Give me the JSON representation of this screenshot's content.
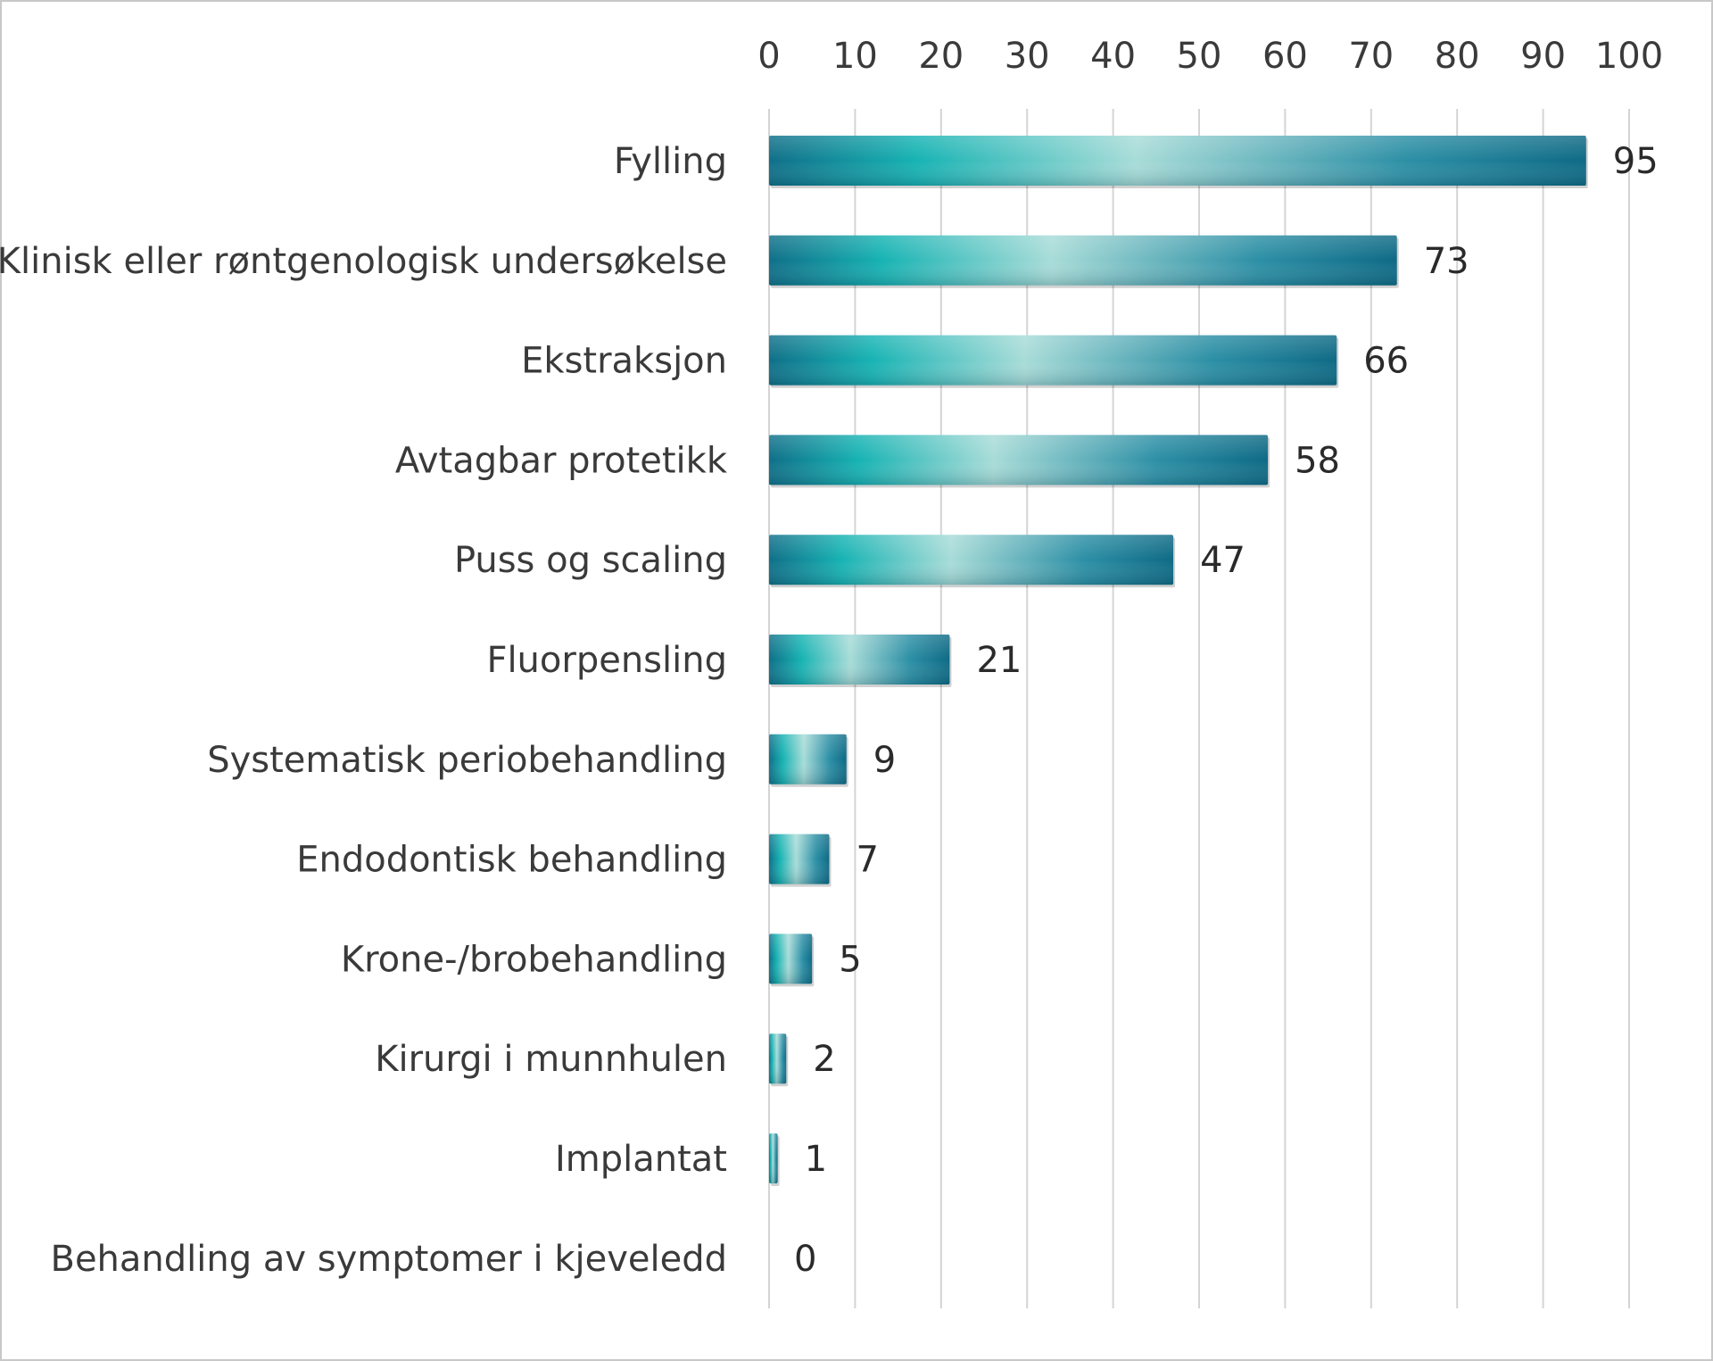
{
  "chart_data": {
    "type": "bar",
    "orientation": "horizontal",
    "title": "",
    "xlabel": "",
    "ylabel": "",
    "xlim": [
      0,
      100
    ],
    "x_ticks": [
      0,
      10,
      20,
      30,
      40,
      50,
      60,
      70,
      80,
      90,
      100
    ],
    "x_axis_position": "top",
    "grid": true,
    "legend": "none",
    "categories": [
      "Fylling",
      "Klinisk eller røntgenologisk undersøkelse",
      "Ekstraksjon",
      "Avtagbar protetikk",
      "Puss og scaling",
      "Fluorpensling",
      "Systematisk periobehandling",
      "Endodontisk behandling",
      "Krone-/brobehandling",
      "Kirurgi i munnhulen",
      "Implantat",
      "Behandling av symptomer i kjeveledd"
    ],
    "values": [
      95,
      73,
      66,
      58,
      47,
      21,
      9,
      7,
      5,
      2,
      1,
      0
    ],
    "colors": {
      "bar_dark": "#0f6f88",
      "bar_mid": "#17b3b3",
      "bar_light": "#a8dcd8",
      "grid": "#d4d4d4"
    }
  }
}
